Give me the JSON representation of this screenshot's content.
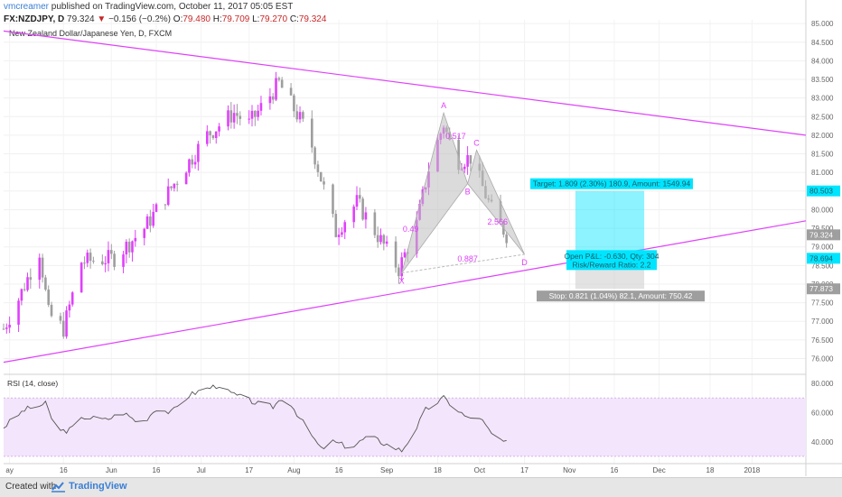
{
  "header": {
    "user": "vmcreamer",
    "published_text": "published on TradingView.com, October 11, 2017 05:05 EST",
    "symbol": "FX:NZDJPY, D",
    "price": "79.324",
    "change": "−0.156 (−0.2%)",
    "open_label": "O:",
    "open": "79.480",
    "high_label": "H:",
    "high": "79.709",
    "low_label": "L:",
    "low": "79.270",
    "close_label": "C:",
    "close": "79.324"
  },
  "footer": {
    "created_with": "Created with",
    "brand": "TradingView"
  },
  "colors": {
    "accent": "#e040fb",
    "bull": "#e040fb",
    "bear": "#9e9e9e",
    "target_box": "#00e5ff",
    "stop_box": "#c8c8c8",
    "rsi_band": "#f3e5fb",
    "rsi_line": "#555555"
  },
  "chart_data": {
    "type": "candlestick",
    "title": "New Zealand Dollar/Japanese Yen, D, FXCM",
    "price_axis": {
      "ylim": [
        75.6,
        85.1
      ],
      "ticks": [
        "85.000",
        "84.500",
        "84.000",
        "83.500",
        "83.000",
        "82.500",
        "82.000",
        "81.500",
        "81.000",
        "80.500",
        "80.000",
        "79.500",
        "79.000",
        "78.500",
        "78.000",
        "77.500",
        "77.000",
        "76.500",
        "76.000"
      ],
      "badges": [
        "80.503",
        "79.324",
        "78.694",
        "77.873"
      ]
    },
    "x_axis": {
      "date_range": [
        "2017-04-26",
        "2018-01-19"
      ],
      "labels": [
        {
          "text": "ay",
          "date": "2017-04-28"
        },
        {
          "text": "16",
          "date": "2017-05-16"
        },
        {
          "text": "Jun",
          "date": "2017-06-01"
        },
        {
          "text": "16",
          "date": "2017-06-16"
        },
        {
          "text": "Jul",
          "date": "2017-07-01"
        },
        {
          "text": "17",
          "date": "2017-07-17"
        },
        {
          "text": "Aug",
          "date": "2017-08-01"
        },
        {
          "text": "16",
          "date": "2017-08-16"
        },
        {
          "text": "Sep",
          "date": "2017-09-01"
        },
        {
          "text": "18",
          "date": "2017-09-18"
        },
        {
          "text": "Oct",
          "date": "2017-10-02"
        },
        {
          "text": "17",
          "date": "2017-10-17"
        },
        {
          "text": "Nov",
          "date": "2017-11-01"
        },
        {
          "text": "16",
          "date": "2017-11-16"
        },
        {
          "text": "Dec",
          "date": "2017-12-01"
        },
        {
          "text": "18",
          "date": "2017-12-18"
        },
        {
          "text": "2018",
          "date": "2018-01-01"
        }
      ]
    },
    "close_path": [
      {
        "date": "2017-04-26",
        "close": 76.8
      },
      {
        "date": "2017-05-01",
        "close": 77.6
      },
      {
        "date": "2017-05-08",
        "close": 78.9
      },
      {
        "date": "2017-05-11",
        "close": 77.2
      },
      {
        "date": "2017-05-16",
        "close": 76.8
      },
      {
        "date": "2017-05-22",
        "close": 78.6
      },
      {
        "date": "2017-06-02",
        "close": 78.7
      },
      {
        "date": "2017-06-12",
        "close": 79.5
      },
      {
        "date": "2017-06-22",
        "close": 80.7
      },
      {
        "date": "2017-07-03",
        "close": 82.0
      },
      {
        "date": "2017-07-12",
        "close": 82.6
      },
      {
        "date": "2017-07-17",
        "close": 82.3
      },
      {
        "date": "2017-07-27",
        "close": 83.4
      },
      {
        "date": "2017-08-06",
        "close": 82.0
      },
      {
        "date": "2017-08-15",
        "close": 79.4
      },
      {
        "date": "2017-08-22",
        "close": 80.2
      },
      {
        "date": "2017-08-29",
        "close": 79.3
      },
      {
        "date": "2017-09-05",
        "close": 78.4
      },
      {
        "date": "2017-09-11",
        "close": 79.6
      },
      {
        "date": "2017-09-15",
        "close": 81.1
      },
      {
        "date": "2017-09-20",
        "close": 82.3
      },
      {
        "date": "2017-09-24",
        "close": 81.3
      },
      {
        "date": "2017-09-29",
        "close": 81.4
      },
      {
        "date": "2017-10-06",
        "close": 80.0
      },
      {
        "date": "2017-10-11",
        "close": 79.324
      }
    ],
    "trendlines": [
      {
        "name": "upper",
        "from": {
          "date": "2017-04-26",
          "price": 84.8
        },
        "to": {
          "date": "2018-01-19",
          "price": 82.0
        }
      },
      {
        "name": "lower",
        "from": {
          "date": "2017-04-26",
          "price": 75.9
        },
        "to": {
          "date": "2018-01-19",
          "price": 79.7
        }
      }
    ],
    "harmonic": {
      "points": [
        {
          "label": "X",
          "date": "2017-09-06",
          "price": 78.3
        },
        {
          "label": "A",
          "date": "2017-09-20",
          "price": 82.6
        },
        {
          "label": "B",
          "date": "2017-09-28",
          "price": 80.7
        },
        {
          "label": "C",
          "date": "2017-10-01",
          "price": 81.6
        },
        {
          "label": "D",
          "date": "2017-10-17",
          "price": 78.8
        }
      ],
      "ratios": [
        {
          "text": "0.517",
          "date": "2017-09-24",
          "price": 81.9
        },
        {
          "text": "0.49",
          "date": "2017-09-09",
          "price": 79.4
        },
        {
          "text": "2.566",
          "date": "2017-10-08",
          "price": 79.6
        },
        {
          "text": "0.887",
          "date": "2017-09-28",
          "price": 78.6
        }
      ]
    },
    "position": {
      "start_date": "2017-11-03",
      "end_date": "2017-11-26",
      "entry": 78.694,
      "target": 80.503,
      "stop": 77.873,
      "target_text": "Target: 1.809 (2.30%) 180.9, Amount: 1549.94",
      "open_pl_text": "Open P&L: -0.630, Qty: 304",
      "risk_reward_text": "Risk/Reward Ratio: 2.2",
      "stop_text": "Stop: 0.821 (1.04%) 82.1, Amount: 750.42"
    },
    "rsi": {
      "title": "RSI (14, close)",
      "ylim": [
        25,
        85
      ],
      "ticks": [
        "80.000",
        "60.000",
        "40.000"
      ],
      "band": [
        30,
        70
      ],
      "series": [
        {
          "date": "2017-04-26",
          "value": 50
        },
        {
          "date": "2017-05-03",
          "value": 62
        },
        {
          "date": "2017-05-10",
          "value": 66
        },
        {
          "date": "2017-05-14",
          "value": 47
        },
        {
          "date": "2017-05-18",
          "value": 48
        },
        {
          "date": "2017-05-23",
          "value": 57
        },
        {
          "date": "2017-05-30",
          "value": 55
        },
        {
          "date": "2017-06-05",
          "value": 60
        },
        {
          "date": "2017-06-11",
          "value": 52
        },
        {
          "date": "2017-06-16",
          "value": 63
        },
        {
          "date": "2017-06-21",
          "value": 60
        },
        {
          "date": "2017-06-27",
          "value": 72
        },
        {
          "date": "2017-07-02",
          "value": 76
        },
        {
          "date": "2017-07-07",
          "value": 79
        },
        {
          "date": "2017-07-10",
          "value": 74
        },
        {
          "date": "2017-07-15",
          "value": 70
        },
        {
          "date": "2017-07-20",
          "value": 66
        },
        {
          "date": "2017-07-25",
          "value": 64
        },
        {
          "date": "2017-07-29",
          "value": 72
        },
        {
          "date": "2017-08-05",
          "value": 50
        },
        {
          "date": "2017-08-10",
          "value": 35
        },
        {
          "date": "2017-08-14",
          "value": 40
        },
        {
          "date": "2017-08-20",
          "value": 36
        },
        {
          "date": "2017-08-26",
          "value": 44
        },
        {
          "date": "2017-09-01",
          "value": 38
        },
        {
          "date": "2017-09-06",
          "value": 34
        },
        {
          "date": "2017-09-10",
          "value": 46
        },
        {
          "date": "2017-09-14",
          "value": 62
        },
        {
          "date": "2017-09-20",
          "value": 70
        },
        {
          "date": "2017-09-24",
          "value": 63
        },
        {
          "date": "2017-09-28",
          "value": 56
        },
        {
          "date": "2017-10-02",
          "value": 57
        },
        {
          "date": "2017-10-06",
          "value": 45
        },
        {
          "date": "2017-10-11",
          "value": 39
        }
      ]
    }
  }
}
